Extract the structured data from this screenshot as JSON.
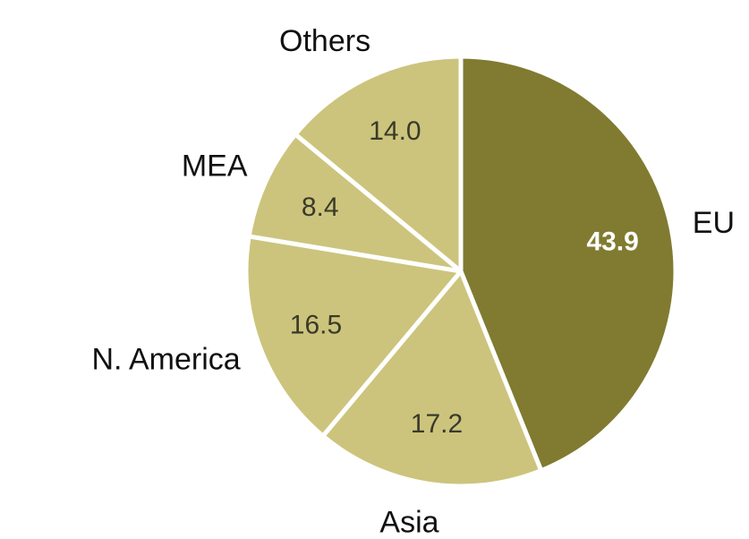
{
  "chart_data": {
    "type": "pie",
    "title": "",
    "slices": [
      {
        "label": "EU",
        "value": 43.9,
        "value_text": "43.9",
        "color": "#807b30",
        "value_color": "#ffffff",
        "value_bold": true
      },
      {
        "label": "Asia",
        "value": 17.2,
        "value_text": "17.2",
        "color": "#ccc47c",
        "value_color": "#3a3a2a",
        "value_bold": false
      },
      {
        "label": "N. America",
        "value": 16.5,
        "value_text": "16.5",
        "color": "#ccc47c",
        "value_color": "#3a3a2a",
        "value_bold": false
      },
      {
        "label": "MEA",
        "value": 8.4,
        "value_text": "8.4",
        "color": "#ccc47c",
        "value_color": "#3a3a2a",
        "value_bold": false
      },
      {
        "label": "Others",
        "value": 14.0,
        "value_text": "14.0",
        "color": "#ccc47c",
        "value_color": "#3a3a2a",
        "value_bold": false
      }
    ],
    "start": "12 o'clock",
    "direction": "clockwise",
    "separator_color": "#ffffff"
  }
}
